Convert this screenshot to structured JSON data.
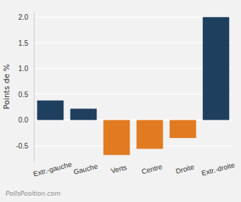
{
  "chart_data": {
    "type": "bar",
    "y_label": "Points de %",
    "source": "PollsPosition.com",
    "categories": [
      "Extr.-gauche",
      "Gauche",
      "Verts",
      "Centre",
      "Droite",
      "Extr.-droite"
    ],
    "values": [
      0.38,
      0.22,
      -0.68,
      -0.56,
      -0.35,
      2.0
    ],
    "colors": [
      "#1f3f5f",
      "#1f3f5f",
      "#e07b22",
      "#e07b22",
      "#e07b22",
      "#1f3f5f"
    ],
    "ylim": [
      -0.8,
      2.1
    ],
    "yticks": [
      -0.5,
      {
        "value": 0,
        "label": "0.0"
      },
      0.5,
      {
        "value": 1,
        "label": "1.0"
      },
      1.5,
      {
        "value": 2,
        "label": "2.0"
      }
    ],
    "grid": true
  }
}
